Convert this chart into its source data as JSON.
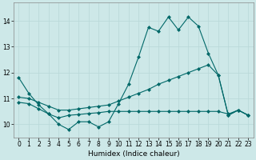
{
  "xlabel": "Humidex (Indice chaleur)",
  "xlim": [
    -0.5,
    23.5
  ],
  "ylim": [
    9.5,
    14.7
  ],
  "xticks": [
    0,
    1,
    2,
    3,
    4,
    5,
    6,
    7,
    8,
    9,
    10,
    11,
    12,
    13,
    14,
    15,
    16,
    17,
    18,
    19,
    20,
    21,
    22,
    23
  ],
  "yticks": [
    10,
    11,
    12,
    13,
    14
  ],
  "background_color": "#cde8e8",
  "grid_color": "#b8d8d8",
  "line_color": "#006868",
  "line1_x": [
    0,
    1,
    2,
    3,
    4,
    5,
    6,
    7,
    8,
    9,
    10,
    11,
    12,
    13,
    14,
    15,
    16,
    17,
    18,
    19,
    20,
    21,
    22,
    23
  ],
  "line1_y": [
    11.8,
    11.2,
    10.75,
    10.4,
    10.0,
    9.8,
    10.1,
    10.1,
    9.9,
    10.1,
    10.8,
    11.55,
    12.6,
    13.75,
    13.6,
    14.15,
    13.65,
    14.15,
    13.8,
    12.75,
    11.9,
    10.35,
    10.55,
    10.35
  ],
  "line2_x": [
    0,
    1,
    2,
    3,
    4,
    5,
    6,
    7,
    8,
    9,
    10,
    11,
    12,
    13,
    14,
    15,
    16,
    17,
    18,
    19,
    20,
    21,
    22,
    23
  ],
  "line2_y": [
    11.05,
    11.0,
    10.85,
    10.7,
    10.55,
    10.55,
    10.6,
    10.65,
    10.7,
    10.75,
    10.9,
    11.05,
    11.2,
    11.35,
    11.55,
    11.7,
    11.85,
    12.0,
    12.15,
    12.3,
    11.9,
    10.35,
    10.55,
    10.35
  ],
  "line3_x": [
    0,
    1,
    2,
    3,
    4,
    5,
    6,
    7,
    8,
    9,
    10,
    11,
    12,
    13,
    14,
    15,
    16,
    17,
    18,
    19,
    20,
    21,
    22,
    23
  ],
  "line3_y": [
    10.85,
    10.8,
    10.6,
    10.4,
    10.25,
    10.35,
    10.38,
    10.42,
    10.45,
    10.5,
    10.5,
    10.5,
    10.5,
    10.5,
    10.5,
    10.5,
    10.5,
    10.5,
    10.5,
    10.5,
    10.5,
    10.4,
    10.55,
    10.35
  ],
  "marker": "D",
  "markersize": 2.0,
  "linewidth": 0.8,
  "tick_fontsize": 5.5,
  "label_fontsize": 6.5
}
